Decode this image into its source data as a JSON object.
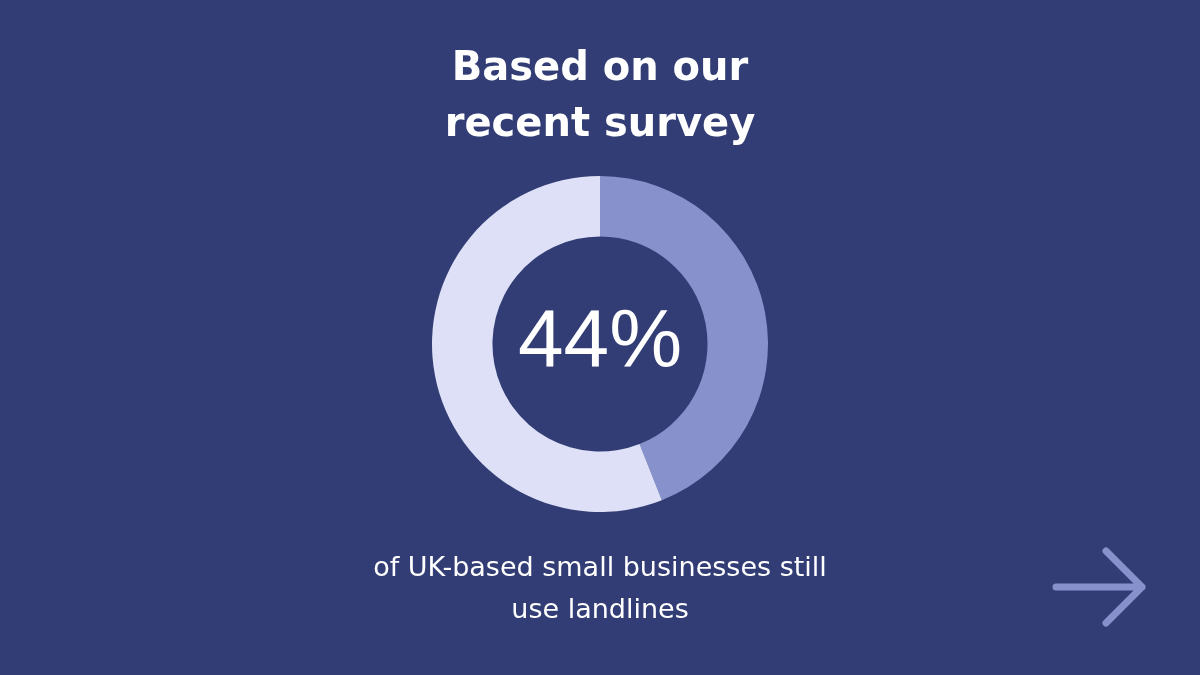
{
  "chart_data": {
    "type": "donut",
    "title": "Based on our recent survey",
    "categories": [
      null,
      null
    ],
    "values": [
      44,
      56
    ],
    "colors": [
      "#8791cc",
      "#dde0f7"
    ],
    "value_labels": [
      "44%",
      null
    ],
    "annotations": [
      "of UK-based small businesses still use landlines"
    ],
    "legend": false
  }
}
